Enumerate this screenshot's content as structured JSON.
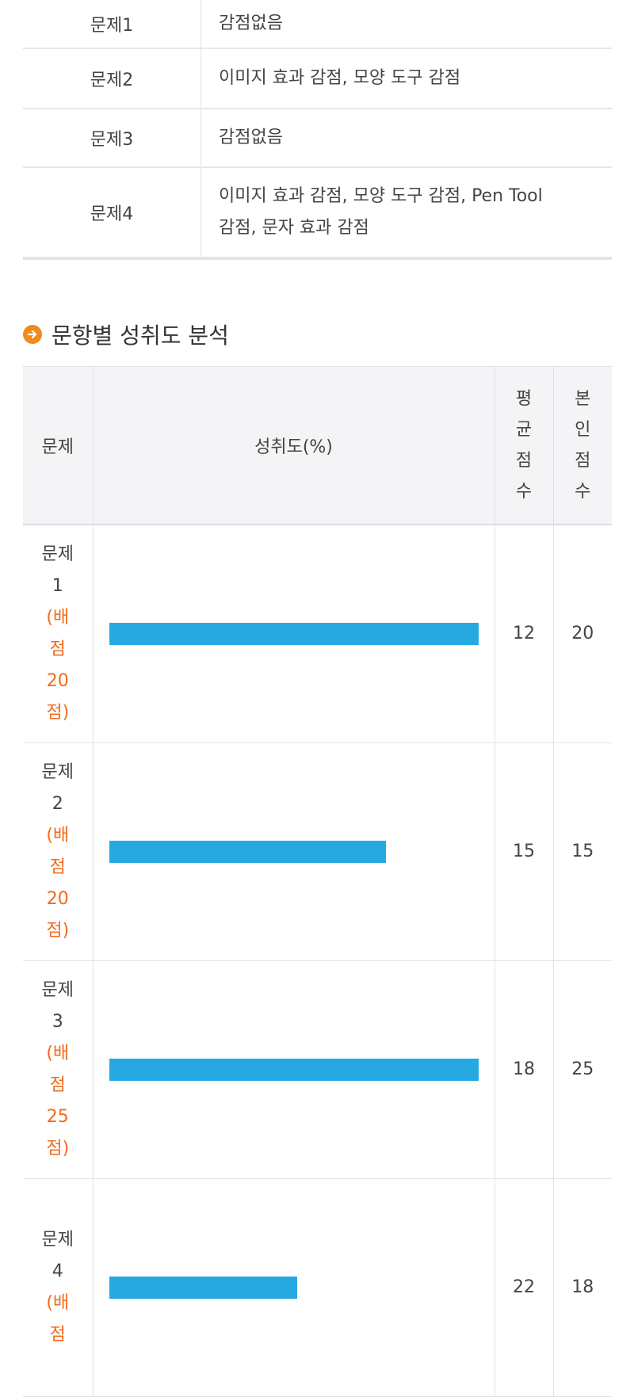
{
  "deductions": [
    {
      "question": "문제1",
      "detail": "감점없음"
    },
    {
      "question": "문제2",
      "detail": "이미지 효과 감점, 모양 도구 감점"
    },
    {
      "question": "문제3",
      "detail": "감점없음"
    },
    {
      "question": "문제4",
      "detail_line1": "이미지 효과 감점, 모양 도구 감점, Pen Tool",
      "detail_line2": "감점, 문자 효과 감점"
    }
  ],
  "section": {
    "title": "문항별 성취도 분석",
    "icon": "arrow-right-circle-icon",
    "accent": "#f28a1e"
  },
  "analysis": {
    "headers": {
      "question": "문제",
      "achievement": "성취도(%)",
      "average": [
        "평",
        "균",
        "점",
        "수"
      ],
      "mine": [
        "본",
        "인",
        "점",
        "수"
      ]
    },
    "bar_color": "#25a9e0",
    "points_color": "#f26b1d",
    "rows": [
      {
        "label": "문제",
        "num": "1",
        "points": [
          "(배",
          "점",
          "20",
          "점)"
        ],
        "achievement_pct": 100,
        "average": "12",
        "mine": "20"
      },
      {
        "label": "문제",
        "num": "2",
        "points": [
          "(배",
          "점",
          "20",
          "점)"
        ],
        "achievement_pct": 75,
        "average": "15",
        "mine": "15"
      },
      {
        "label": "문제",
        "num": "3",
        "points": [
          "(배",
          "점",
          "25",
          "점)"
        ],
        "achievement_pct": 100,
        "average": "18",
        "mine": "25"
      },
      {
        "label": "문제",
        "num": "4",
        "points": [
          "(배",
          "점"
        ],
        "achievement_pct": 51,
        "average": "22",
        "mine": "18"
      }
    ]
  }
}
